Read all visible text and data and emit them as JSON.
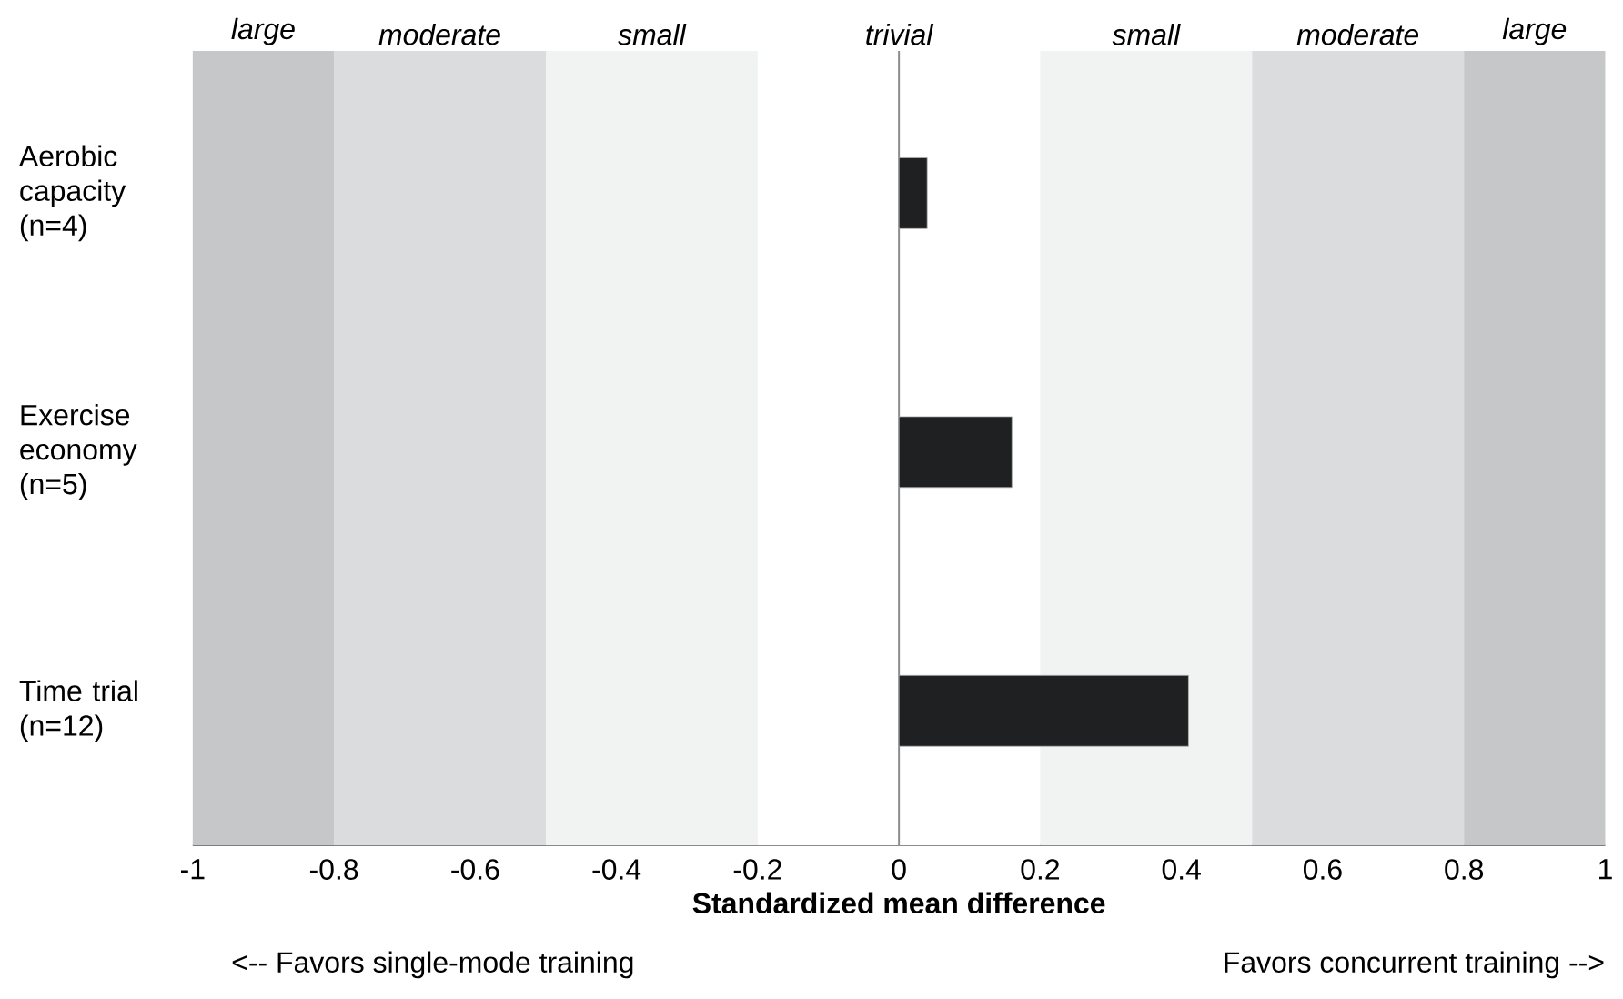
{
  "chart_data": {
    "type": "bar",
    "orientation": "horizontal",
    "xlabel": "Standardized mean difference",
    "categories": [
      "Aerobic capacity (n=4)",
      "Exercise economy (n=5)",
      "Time trial (n=12)"
    ],
    "values": [
      0.04,
      0.16,
      0.41
    ],
    "color": "#1f2021",
    "xlim": [
      -1,
      1
    ],
    "xticks": [
      -1,
      -0.8,
      -0.6,
      -0.4,
      -0.2,
      0,
      0.2,
      0.4,
      0.6,
      0.8,
      1
    ],
    "grid": false,
    "ref_lines": [
      {
        "axis": "x",
        "value": 0,
        "color": "#8c8c8c"
      }
    ],
    "bands": [
      {
        "axis": "x",
        "from": -1,
        "to": -0.8,
        "label": "large",
        "color": "#c6c7c8"
      },
      {
        "axis": "x",
        "from": -0.8,
        "to": -0.5,
        "label": "moderate",
        "color": "#dbdcdd"
      },
      {
        "axis": "x",
        "from": -0.5,
        "to": -0.2,
        "label": "small",
        "color": "#f1f3f2"
      },
      {
        "axis": "x",
        "from": -0.2,
        "to": 0.2,
        "label": "trivial",
        "color": "#ffffff"
      },
      {
        "axis": "x",
        "from": 0.2,
        "to": 0.5,
        "label": "small",
        "color": "#f1f3f2"
      },
      {
        "axis": "x",
        "from": 0.5,
        "to": 0.8,
        "label": "moderate",
        "color": "#dbdcdd"
      },
      {
        "axis": "x",
        "from": 0.8,
        "to": 1,
        "label": "large",
        "color": "#c6c7c8"
      }
    ],
    "annotations": [
      "<-- Favors single-mode training",
      "Favors concurrent training -->"
    ]
  }
}
